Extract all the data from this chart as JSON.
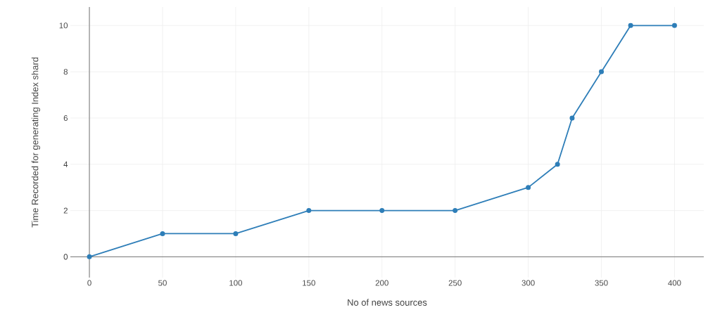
{
  "chart_data": {
    "type": "line",
    "xlabel": "No of news sources",
    "ylabel": "Time Recorded for generating Index shard",
    "x": [
      0,
      50,
      100,
      150,
      200,
      250,
      300,
      320,
      330,
      350,
      370,
      400
    ],
    "series": [
      {
        "color": "#2e7eb8",
        "values": [
          0,
          1,
          1,
          2,
          2,
          2,
          3,
          4,
          6,
          8,
          10,
          10
        ]
      }
    ],
    "xlim": [
      -13,
      420
    ],
    "ylim": [
      -0.9,
      10.8
    ],
    "xticks": [
      0,
      50,
      100,
      150,
      200,
      250,
      300,
      350,
      400
    ],
    "yticks": [
      0,
      2,
      4,
      6,
      8,
      10
    ],
    "grid": true,
    "marker": "circle",
    "line_style": "solid"
  }
}
